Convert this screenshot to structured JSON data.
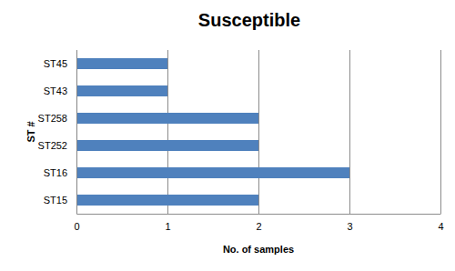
{
  "chart_data": {
    "type": "bar",
    "orientation": "horizontal",
    "title": "Susceptible",
    "x_label": "No. of samples",
    "y_label": "ST #",
    "categories": [
      "ST45",
      "ST43",
      "ST258",
      "ST252",
      "ST16",
      "ST15"
    ],
    "values": [
      1,
      1,
      2,
      2,
      3,
      2
    ],
    "color": "#4f81bd",
    "xlim": [
      0,
      4
    ],
    "xticks": [
      0,
      1,
      2,
      3,
      4
    ],
    "grid": true
  }
}
